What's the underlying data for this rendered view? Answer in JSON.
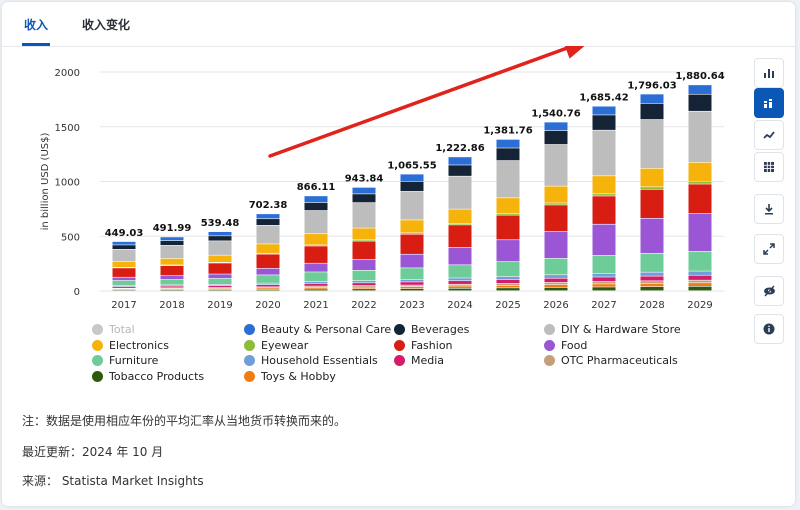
{
  "tabs": [
    "收入",
    "收入变化"
  ],
  "chart_data": {
    "type": "bar",
    "stacked": true,
    "ylabel": "in billion USD (US$)",
    "ylim": [
      0,
      2000
    ],
    "yticks": [
      0,
      500,
      1000,
      1500,
      2000
    ],
    "categories": [
      "2017",
      "2018",
      "2019",
      "2020",
      "2021",
      "2022",
      "2023",
      "2024",
      "2025",
      "2026",
      "2027",
      "2028",
      "2029"
    ],
    "totals": [
      "449.03",
      "491.99",
      "539.48",
      "702.38",
      "866.11",
      "943.84",
      "1,065.55",
      "1,222.86",
      "1,381.76",
      "1,540.76",
      "1,685.42",
      "1,796.03",
      "1,880.64"
    ],
    "series": [
      {
        "name": "Tobacco Products",
        "color": "#2f5a0e",
        "values": [
          8,
          9,
          10,
          12,
          15,
          17,
          19,
          22,
          26,
          30,
          34,
          37,
          40
        ]
      },
      {
        "name": "Toys & Hobby",
        "color": "#ef7d14",
        "values": [
          9,
          10,
          11,
          13,
          15,
          16,
          18,
          21,
          23,
          26,
          28,
          30,
          32
        ]
      },
      {
        "name": "OTC Pharmaceuticals",
        "color": "#c3a07a",
        "values": [
          6,
          7,
          8,
          10,
          12,
          13,
          14,
          16,
          18,
          20,
          22,
          23,
          24
        ]
      },
      {
        "name": "Media",
        "color": "#d51c6b",
        "values": [
          15,
          16,
          17,
          20,
          24,
          26,
          29,
          32,
          35,
          38,
          41,
          43,
          45
        ]
      },
      {
        "name": "Household Essentials",
        "color": "#6f9ed8",
        "values": [
          10,
          11,
          12,
          14,
          17,
          19,
          22,
          25,
          28,
          31,
          34,
          36,
          38
        ]
      },
      {
        "name": "Furniture",
        "color": "#6ecc98",
        "values": [
          45,
          49,
          54,
          75,
          88,
          95,
          106,
          120,
          135,
          150,
          163,
          172,
          180
        ]
      },
      {
        "name": "Food",
        "color": "#9b56d6",
        "values": [
          30,
          35,
          40,
          60,
          80,
          100,
          125,
          160,
          200,
          245,
          285,
          320,
          345
        ]
      },
      {
        "name": "Fashion",
        "color": "#d81e13",
        "values": [
          85,
          92,
          101,
          130,
          157,
          167,
          183,
          205,
          225,
          243,
          258,
          265,
          270
        ]
      },
      {
        "name": "Eyewear",
        "color": "#8cbd35",
        "values": [
          5,
          6,
          6,
          8,
          10,
          11,
          12,
          14,
          16,
          18,
          20,
          22,
          23
        ]
      },
      {
        "name": "Electronics",
        "color": "#f6b30c",
        "values": [
          55,
          60,
          65,
          85,
          102,
          108,
          118,
          130,
          142,
          154,
          164,
          170,
          175
        ]
      },
      {
        "name": "DIY & Hardware Store",
        "color": "#bdbdbd",
        "values": [
          110,
          119,
          131,
          170,
          212,
          232,
          261,
          301,
          340,
          380,
          417,
          445,
          467
        ]
      },
      {
        "name": "Beverages",
        "color": "#142336",
        "values": [
          40,
          43,
          46,
          60,
          73,
          80,
          90,
          102,
          115,
          127,
          139,
          148,
          155
        ]
      },
      {
        "name": "Beauty & Personal Care",
        "color": "#2a6ed6",
        "values": [
          31,
          34,
          38,
          45,
          61,
          60,
          68,
          74,
          79,
          78,
          80,
          85,
          86
        ]
      }
    ],
    "legend": [
      {
        "label": "Total",
        "color": "#c8c8c8",
        "muted": true
      },
      {
        "label": "Beauty & Personal Care",
        "color": "#2a6ed6"
      },
      {
        "label": "Beverages",
        "color": "#142336"
      },
      {
        "label": "DIY & Hardware Store",
        "color": "#bdbdbd"
      },
      {
        "label": "Electronics",
        "color": "#f6b30c"
      },
      {
        "label": "Eyewear",
        "color": "#8cbd35"
      },
      {
        "label": "Fashion",
        "color": "#d81e13"
      },
      {
        "label": "Food",
        "color": "#9b56d6"
      },
      {
        "label": "Furniture",
        "color": "#6ecc98"
      },
      {
        "label": "Household Essentials",
        "color": "#6f9ed8"
      },
      {
        "label": "Media",
        "color": "#d51c6b"
      },
      {
        "label": "OTC Pharmaceuticals",
        "color": "#c3a07a"
      },
      {
        "label": "Tobacco Products",
        "color": "#2f5a0e"
      },
      {
        "label": "Toys & Hobby",
        "color": "#ef7d14"
      }
    ],
    "annotation": {
      "type": "arrow",
      "color": "#e0231b"
    }
  },
  "toolbar": [
    {
      "icon": "bar-chart-icon",
      "active": false
    },
    {
      "icon": "stacked-bar-icon",
      "active": true
    },
    {
      "icon": "line-chart-icon",
      "active": false
    },
    {
      "icon": "table-icon",
      "active": false
    },
    {
      "icon": "download-icon",
      "active": false
    },
    {
      "icon": "fullscreen-icon",
      "active": false
    },
    {
      "icon": "hide-icon",
      "active": false
    },
    {
      "icon": "info-icon",
      "active": false
    }
  ],
  "footer": {
    "note": "注：数据是使用相应年份的平均汇率从当地货币转换而来的。",
    "updated": "最近更新：2024 年 10 月",
    "source": "来源：  Statista Market Insights"
  },
  "colors": {
    "accent": "#0b57b5"
  }
}
